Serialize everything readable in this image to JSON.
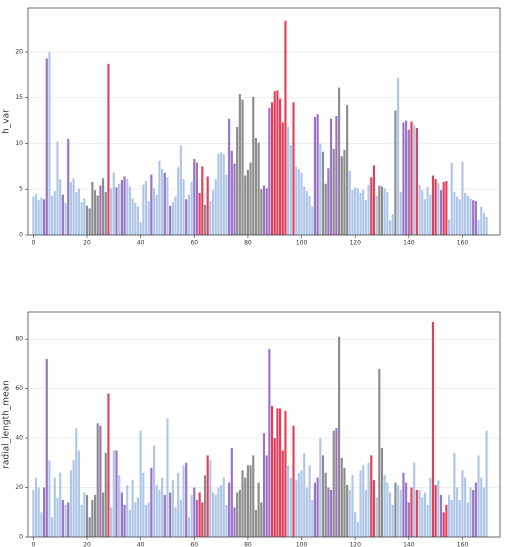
{
  "chart_data": [
    {
      "type": "bar",
      "ylabel": "h_var",
      "xlim": [
        -2,
        174
      ],
      "xticks": [
        0,
        20,
        40,
        60,
        80,
        100,
        120,
        140,
        160
      ],
      "ylim": [
        0,
        24.8
      ],
      "yticks": [
        0,
        5,
        10,
        15,
        20
      ],
      "grid": true,
      "values": [
        4.2,
        4.5,
        3.8,
        4.1,
        3.9,
        19.3,
        20.0,
        4.3,
        4.8,
        10.2,
        6.1,
        4.4,
        3.5,
        10.5,
        5.8,
        6.2,
        4.7,
        5.1,
        3.6,
        4.0,
        3.2,
        2.9,
        5.8,
        4.9,
        4.3,
        5.4,
        6.2,
        4.7,
        18.7,
        5.1,
        6.8,
        5.2,
        5.6,
        6.0,
        6.4,
        6.1,
        5.3,
        4.0,
        3.5,
        3.1,
        1.4,
        5.5,
        5.9,
        3.7,
        6.6,
        5.1,
        4.4,
        8.1,
        7.2,
        6.8,
        6.3,
        3.2,
        3.6,
        4.2,
        7.4,
        9.8,
        6.1,
        3.9,
        4.4,
        5.8,
        8.3,
        7.9,
        4.6,
        7.5,
        3.3,
        6.4,
        3.7,
        4.9,
        6.1,
        8.9,
        9.0,
        8.8,
        6.6,
        12.7,
        9.2,
        7.8,
        11.8,
        15.4,
        14.8,
        6.5,
        7.1,
        7.9,
        15.1,
        10.6,
        10.1,
        5.0,
        5.4,
        5.1,
        13.9,
        14.5,
        15.7,
        15.8,
        14.9,
        12.3,
        23.4,
        11.8,
        9.8,
        14.5,
        7.5,
        7.2,
        6.8,
        5.3,
        4.8,
        4.3,
        3.1,
        12.9,
        13.2,
        10.0,
        9.1,
        5.6,
        7.3,
        12.7,
        9.4,
        13.0,
        16.1,
        8.6,
        9.3,
        14.2,
        7.0,
        4.9,
        5.2,
        5.1,
        4.6,
        4.9,
        3.8,
        5.5,
        6.3,
        7.6,
        4.3,
        5.4,
        5.3,
        5.1,
        4.7,
        1.6,
        2.3,
        13.6,
        17.2,
        4.7,
        12.3,
        12.5,
        11.5,
        12.4,
        12.0,
        11.7,
        5.5,
        4.9,
        3.9,
        5.3,
        4.4,
        6.5,
        6.1,
        5.7,
        4.9,
        5.8,
        5.9,
        1.7,
        7.9,
        4.7,
        4.2,
        3.9,
        8.0,
        4.6,
        4.3,
        4.0,
        3.8,
        3.7,
        1.6,
        3.1,
        2.4,
        2.0
      ],
      "colors": [
        "#aec7e8",
        "#aec7e8",
        "#aec7e8",
        "#aec7e8",
        "#9b72c4",
        "#9b72c4",
        "#aec7e8",
        "#aec7e8",
        "#aec7e8",
        "#aec7e8",
        "#aec7e8",
        "#9b72c4",
        "#aec7e8",
        "#9b72c4",
        "#aec7e8",
        "#aec7e8",
        "#aec7e8",
        "#aec7e8",
        "#aec7e8",
        "#aec7e8",
        "#8c8c8c",
        "#8c8c8c",
        "#8c8c8c",
        "#8c8c8c",
        "#8c8c8c",
        "#9b72c4",
        "#8c8c8c",
        "#8c8c8c",
        "#e0405a",
        "#aec7e8",
        "#aec7e8",
        "#9b72c4",
        "#aec7e8",
        "#9b72c4",
        "#9b72c4",
        "#aec7e8",
        "#aec7e8",
        "#aec7e8",
        "#aec7e8",
        "#aec7e8",
        "#aec7e8",
        "#aec7e8",
        "#aec7e8",
        "#aec7e8",
        "#9b72c4",
        "#aec7e8",
        "#aec7e8",
        "#aec7e8",
        "#aec7e8",
        "#9b72c4",
        "#aec7e8",
        "#9b72c4",
        "#aec7e8",
        "#aec7e8",
        "#aec7e8",
        "#aec7e8",
        "#aec7e8",
        "#9b72c4",
        "#aec7e8",
        "#aec7e8",
        "#9b72c4",
        "#9b72c4",
        "#e0405a",
        "#e0405a",
        "#8c8c8c",
        "#e0405a",
        "#aec7e8",
        "#aec7e8",
        "#aec7e8",
        "#aec7e8",
        "#aec7e8",
        "#aec7e8",
        "#aec7e8",
        "#9b72c4",
        "#9b72c4",
        "#9b72c4",
        "#8c8c8c",
        "#8c8c8c",
        "#8c8c8c",
        "#8c8c8c",
        "#8c8c8c",
        "#8c8c8c",
        "#8c8c8c",
        "#8c8c8c",
        "#8c8c8c",
        "#8c8c8c",
        "#9b72c4",
        "#9b72c4",
        "#9b72c4",
        "#e0405a",
        "#e0405a",
        "#e0405a",
        "#e0405a",
        "#e0405a",
        "#e0405a",
        "#aec7e8",
        "#aec7e8",
        "#e0405a",
        "#aec7e8",
        "#aec7e8",
        "#aec7e8",
        "#aec7e8",
        "#aec7e8",
        "#aec7e8",
        "#aec7e8",
        "#9b72c4",
        "#9b72c4",
        "#aec7e8",
        "#8c8c8c",
        "#8c8c8c",
        "#9b72c4",
        "#9b72c4",
        "#8c8c8c",
        "#9b72c4",
        "#8c8c8c",
        "#8c8c8c",
        "#8c8c8c",
        "#8c8c8c",
        "#aec7e8",
        "#aec7e8",
        "#aec7e8",
        "#aec7e8",
        "#aec7e8",
        "#aec7e8",
        "#aec7e8",
        "#aec7e8",
        "#e0405a",
        "#e0405a",
        "#aec7e8",
        "#8c8c8c",
        "#8c8c8c",
        "#aec7e8",
        "#aec7e8",
        "#aec7e8",
        "#aec7e8",
        "#8c8c8c",
        "#aec7e8",
        "#aec7e8",
        "#9b72c4",
        "#9b72c4",
        "#9b72c4",
        "#e0405a",
        "#aec7e8",
        "#e0405a",
        "#aec7e8",
        "#aec7e8",
        "#aec7e8",
        "#aec7e8",
        "#aec7e8",
        "#e0405a",
        "#e0405a",
        "#aec7e8",
        "#9b72c4",
        "#e0405a",
        "#e0405a",
        "#aec7e8",
        "#aec7e8",
        "#aec7e8",
        "#aec7e8",
        "#aec7e8",
        "#aec7e8",
        "#aec7e8",
        "#aec7e8",
        "#aec7e8",
        "#9b72c4",
        "#9b72c4",
        "#aec7e8",
        "#aec7e8",
        "#aec7e8",
        "#aec7e8"
      ]
    },
    {
      "type": "bar",
      "ylabel": "radial_length_mean",
      "xlim": [
        -2,
        174
      ],
      "xticks": [
        0,
        20,
        40,
        60,
        80,
        100,
        120,
        140,
        160
      ],
      "ylim": [
        0,
        91
      ],
      "yticks": [
        0,
        20,
        40,
        60,
        80
      ],
      "grid": true,
      "values": [
        19,
        24,
        20,
        10,
        20,
        72,
        31,
        8,
        24,
        16,
        26,
        15,
        13,
        14,
        27,
        31,
        44,
        35,
        13,
        18,
        17,
        8,
        15,
        17,
        46,
        45,
        18,
        34,
        58,
        12,
        35,
        35,
        25,
        18,
        13,
        21,
        11,
        23,
        14,
        16,
        43,
        26,
        13,
        14,
        28,
        37,
        21,
        19,
        24,
        17,
        48,
        18,
        23,
        12,
        26,
        15,
        29,
        30,
        8,
        17,
        20,
        15,
        18,
        14,
        25,
        33,
        31,
        18,
        17,
        20,
        21,
        24,
        13,
        22,
        36,
        12,
        18,
        19,
        27,
        24,
        29,
        29,
        33,
        11,
        22,
        14,
        42,
        33,
        76,
        53,
        40,
        52,
        52,
        35,
        51,
        29,
        24,
        45,
        23,
        26,
        27,
        34,
        20,
        29,
        15,
        22,
        24,
        40,
        33,
        26,
        20,
        19,
        43,
        44,
        81,
        32,
        28,
        21,
        19,
        25,
        10,
        6,
        27,
        29,
        19,
        30,
        33,
        23,
        16,
        68,
        36,
        25,
        22,
        18,
        13,
        22,
        21,
        19,
        26,
        22,
        14,
        20,
        30,
        19,
        19,
        16,
        18,
        13,
        24,
        87,
        21,
        23,
        17,
        10,
        13,
        17,
        15,
        34,
        20,
        15,
        27,
        24,
        14,
        20,
        19,
        22,
        33,
        24,
        20,
        43
      ],
      "colors": [
        "#aec7e8",
        "#aec7e8",
        "#aec7e8",
        "#aec7e8",
        "#9b72c4",
        "#9b72c4",
        "#aec7e8",
        "#aec7e8",
        "#aec7e8",
        "#aec7e8",
        "#aec7e8",
        "#9b72c4",
        "#aec7e8",
        "#9b72c4",
        "#aec7e8",
        "#aec7e8",
        "#aec7e8",
        "#aec7e8",
        "#aec7e8",
        "#aec7e8",
        "#8c8c8c",
        "#8c8c8c",
        "#8c8c8c",
        "#8c8c8c",
        "#8c8c8c",
        "#9b72c4",
        "#8c8c8c",
        "#8c8c8c",
        "#e0405a",
        "#aec7e8",
        "#aec7e8",
        "#9b72c4",
        "#aec7e8",
        "#9b72c4",
        "#9b72c4",
        "#aec7e8",
        "#aec7e8",
        "#aec7e8",
        "#aec7e8",
        "#aec7e8",
        "#aec7e8",
        "#aec7e8",
        "#aec7e8",
        "#aec7e8",
        "#9b72c4",
        "#aec7e8",
        "#aec7e8",
        "#aec7e8",
        "#aec7e8",
        "#9b72c4",
        "#aec7e8",
        "#9b72c4",
        "#aec7e8",
        "#aec7e8",
        "#aec7e8",
        "#aec7e8",
        "#aec7e8",
        "#9b72c4",
        "#aec7e8",
        "#aec7e8",
        "#9b72c4",
        "#9b72c4",
        "#e0405a",
        "#e0405a",
        "#8c8c8c",
        "#e0405a",
        "#aec7e8",
        "#aec7e8",
        "#aec7e8",
        "#aec7e8",
        "#aec7e8",
        "#aec7e8",
        "#aec7e8",
        "#9b72c4",
        "#9b72c4",
        "#9b72c4",
        "#8c8c8c",
        "#8c8c8c",
        "#8c8c8c",
        "#8c8c8c",
        "#8c8c8c",
        "#8c8c8c",
        "#8c8c8c",
        "#8c8c8c",
        "#8c8c8c",
        "#8c8c8c",
        "#9b72c4",
        "#9b72c4",
        "#9b72c4",
        "#e0405a",
        "#e0405a",
        "#e0405a",
        "#e0405a",
        "#e0405a",
        "#e0405a",
        "#aec7e8",
        "#aec7e8",
        "#e0405a",
        "#aec7e8",
        "#aec7e8",
        "#aec7e8",
        "#aec7e8",
        "#aec7e8",
        "#aec7e8",
        "#aec7e8",
        "#9b72c4",
        "#9b72c4",
        "#aec7e8",
        "#8c8c8c",
        "#8c8c8c",
        "#9b72c4",
        "#9b72c4",
        "#8c8c8c",
        "#9b72c4",
        "#8c8c8c",
        "#8c8c8c",
        "#8c8c8c",
        "#8c8c8c",
        "#aec7e8",
        "#aec7e8",
        "#aec7e8",
        "#aec7e8",
        "#aec7e8",
        "#aec7e8",
        "#aec7e8",
        "#aec7e8",
        "#e0405a",
        "#e0405a",
        "#aec7e8",
        "#8c8c8c",
        "#8c8c8c",
        "#aec7e8",
        "#aec7e8",
        "#aec7e8",
        "#aec7e8",
        "#8c8c8c",
        "#aec7e8",
        "#aec7e8",
        "#9b72c4",
        "#9b72c4",
        "#9b72c4",
        "#e0405a",
        "#aec7e8",
        "#e0405a",
        "#aec7e8",
        "#aec7e8",
        "#aec7e8",
        "#aec7e8",
        "#aec7e8",
        "#e0405a",
        "#e0405a",
        "#aec7e8",
        "#9b72c4",
        "#e0405a",
        "#e0405a",
        "#aec7e8",
        "#aec7e8",
        "#aec7e8",
        "#aec7e8",
        "#aec7e8",
        "#aec7e8",
        "#aec7e8",
        "#aec7e8",
        "#aec7e8",
        "#9b72c4",
        "#9b72c4",
        "#aec7e8",
        "#aec7e8",
        "#aec7e8",
        "#aec7e8"
      ]
    }
  ]
}
